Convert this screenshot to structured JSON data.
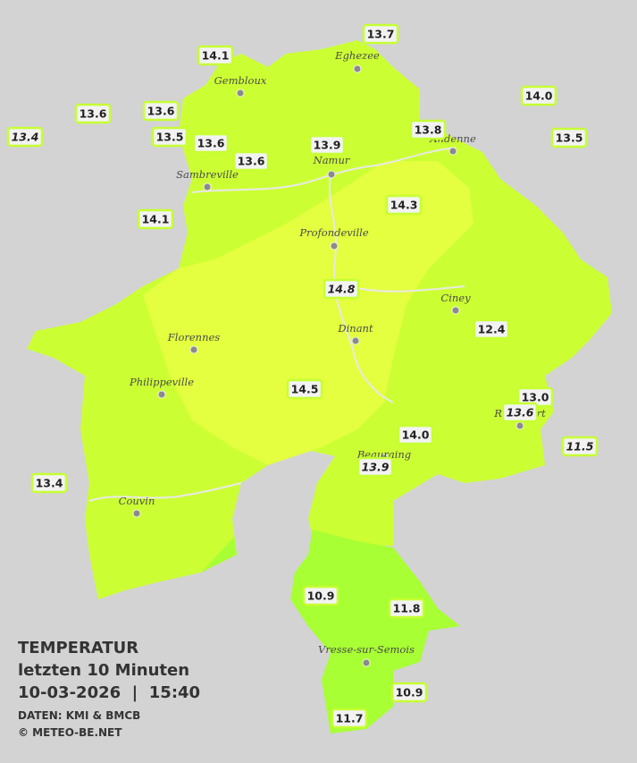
{
  "map": {
    "title": "TEMPERATUR",
    "subtitle": "letzten 10 Minuten",
    "datetime": "10-03-2026  |  15:40",
    "source": "DATEN: KMI & BMCB",
    "copyright": "© METEO-BE.NET",
    "cities": [
      "Eghezee",
      "Gembloux",
      "Andenne",
      "Namur",
      "Sambreville",
      "Profondeville",
      "Ciney",
      "Dinant",
      "Florennes",
      "Philippeville",
      "Rochefort",
      "Beauraing",
      "Couvin",
      "Vresse-sur-Semois"
    ],
    "stations": [
      {
        "label": "14.1",
        "italic": false
      },
      {
        "label": "13.7",
        "italic": false
      },
      {
        "label": "14.0",
        "italic": false
      },
      {
        "label": "13.6",
        "italic": false
      },
      {
        "label": "13.6",
        "italic": false
      },
      {
        "label": "13.5",
        "italic": false
      },
      {
        "label": "13.6",
        "italic": false
      },
      {
        "label": "13.4",
        "italic": true
      },
      {
        "label": "13.8",
        "italic": false
      },
      {
        "label": "13.9",
        "italic": false
      },
      {
        "label": "13.5",
        "italic": false
      },
      {
        "label": "13.6",
        "italic": false
      },
      {
        "label": "14.1",
        "italic": false
      },
      {
        "label": "14.3",
        "italic": false
      },
      {
        "label": "14.8",
        "italic": true
      },
      {
        "label": "12.4",
        "italic": false
      },
      {
        "label": "14.5",
        "italic": false
      },
      {
        "label": "13.0",
        "italic": false
      },
      {
        "label": "13.6",
        "italic": true
      },
      {
        "label": "14.0",
        "italic": false
      },
      {
        "label": "11.5",
        "italic": true
      },
      {
        "label": "13.9",
        "italic": true
      },
      {
        "label": "13.4",
        "italic": false
      },
      {
        "label": "10.9",
        "italic": false
      },
      {
        "label": "11.8",
        "italic": false
      },
      {
        "label": "10.9",
        "italic": false
      },
      {
        "label": "11.7",
        "italic": false
      }
    ]
  }
}
